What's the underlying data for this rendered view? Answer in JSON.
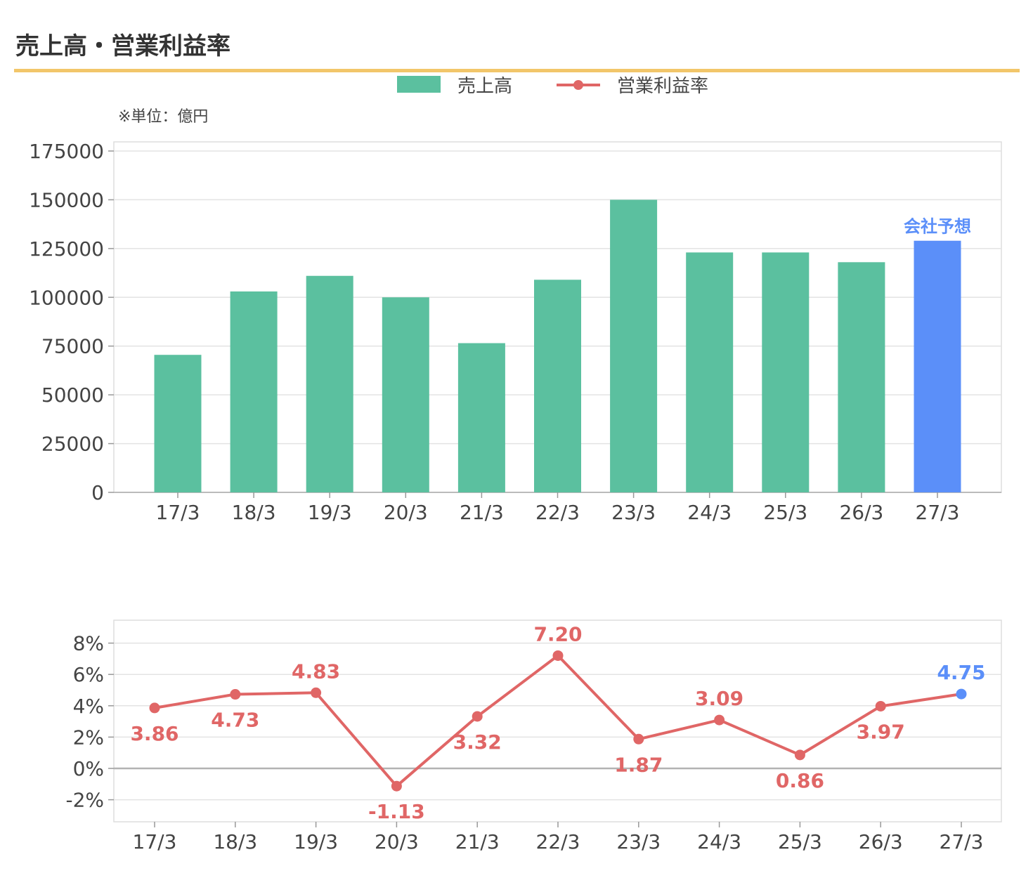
{
  "header": {
    "title": "売上高・営業利益率"
  },
  "legend": {
    "bar_label": "売上高",
    "line_label": "営業利益率"
  },
  "unit_note": "※単位：億円",
  "colors": {
    "bar": "#5bc09f",
    "forecast": "#5b8ff9",
    "line": "#e06666",
    "title_rule": "#f2c66a"
  },
  "chart_data": [
    {
      "type": "bar",
      "categories": [
        "17/3",
        "18/3",
        "19/3",
        "20/3",
        "21/3",
        "22/3",
        "23/3",
        "24/3",
        "25/3",
        "26/3",
        "27/3"
      ],
      "series": [
        {
          "name": "売上高",
          "values": [
            70500,
            103000,
            111000,
            100000,
            76500,
            109000,
            150000,
            123000,
            123000,
            118000,
            129000
          ]
        }
      ],
      "forecast_index": 10,
      "forecast_label": "会社予想",
      "ylim": [
        0,
        175000
      ],
      "yticks": [
        "0",
        "25000",
        "50000",
        "75000",
        "100000",
        "125000",
        "150000",
        "175000"
      ],
      "grid": true
    },
    {
      "type": "line",
      "categories": [
        "17/3",
        "18/3",
        "19/3",
        "20/3",
        "21/3",
        "22/3",
        "23/3",
        "24/3",
        "25/3",
        "26/3",
        "27/3"
      ],
      "series": [
        {
          "name": "営業利益率",
          "values": [
            3.86,
            4.73,
            4.83,
            -1.13,
            3.32,
            7.2,
            1.87,
            3.09,
            0.86,
            3.97,
            4.75
          ]
        }
      ],
      "data_labels": [
        "3.86",
        "4.73",
        "4.83",
        "-1.13",
        "3.32",
        "7.20",
        "1.87",
        "3.09",
        "0.86",
        "3.97",
        "4.75"
      ],
      "forecast_index": 10,
      "ylim": [
        -3,
        9
      ],
      "yticks": [
        "-2%",
        "0%",
        "2%",
        "4%",
        "6%",
        "8%"
      ],
      "grid": true
    }
  ]
}
